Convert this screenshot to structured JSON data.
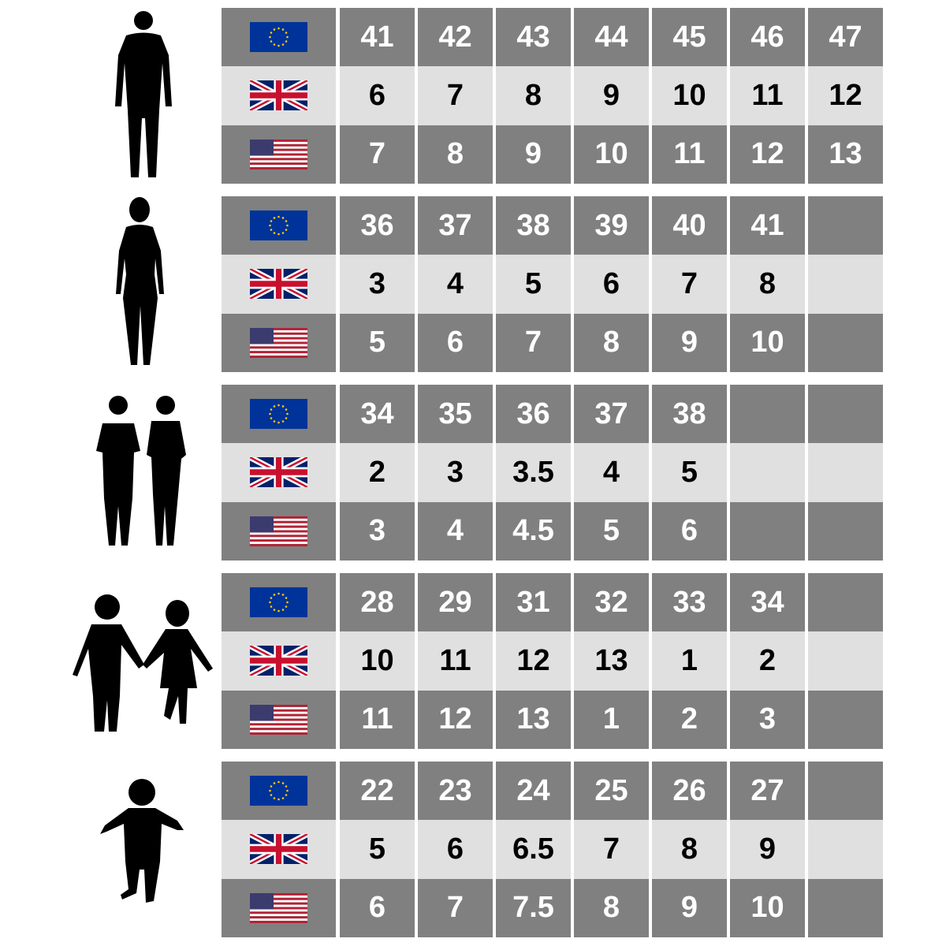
{
  "colors": {
    "dark_row": "#808080",
    "light_row": "#e0e0e0",
    "silhouette": "#000000"
  },
  "row_flags": [
    "eu-flag-icon",
    "uk-flag-icon",
    "us-flag-icon"
  ],
  "groups": [
    {
      "figure": "man-silhouette-icon",
      "eu": [
        "41",
        "42",
        "43",
        "44",
        "45",
        "46",
        "47"
      ],
      "uk": [
        "6",
        "7",
        "8",
        "9",
        "10",
        "11",
        "12"
      ],
      "us": [
        "7",
        "8",
        "9",
        "10",
        "11",
        "12",
        "13"
      ]
    },
    {
      "figure": "woman-silhouette-icon",
      "eu": [
        "36",
        "37",
        "38",
        "39",
        "40",
        "41",
        ""
      ],
      "uk": [
        "3",
        "4",
        "5",
        "6",
        "7",
        "8",
        ""
      ],
      "us": [
        "5",
        "6",
        "7",
        "8",
        "9",
        "10",
        ""
      ]
    },
    {
      "figure": "teens-silhouette-icon",
      "eu": [
        "34",
        "35",
        "36",
        "37",
        "38",
        "",
        ""
      ],
      "uk": [
        "2",
        "3",
        "3.5",
        "4",
        "5",
        "",
        ""
      ],
      "us": [
        "3",
        "4",
        "4.5",
        "5",
        "6",
        "",
        ""
      ]
    },
    {
      "figure": "children-holding-hands-silhouette-icon",
      "eu": [
        "28",
        "29",
        "31",
        "32",
        "33",
        "34",
        ""
      ],
      "uk": [
        "10",
        "11",
        "12",
        "13",
        "1",
        "2",
        ""
      ],
      "us": [
        "11",
        "12",
        "13",
        "1",
        "2",
        "3",
        ""
      ]
    },
    {
      "figure": "toddler-silhouette-icon",
      "eu": [
        "22",
        "23",
        "24",
        "25",
        "26",
        "27",
        ""
      ],
      "uk": [
        "5",
        "6",
        "6.5",
        "7",
        "8",
        "9",
        ""
      ],
      "us": [
        "6",
        "7",
        "7.5",
        "8",
        "9",
        "10",
        ""
      ]
    }
  ]
}
